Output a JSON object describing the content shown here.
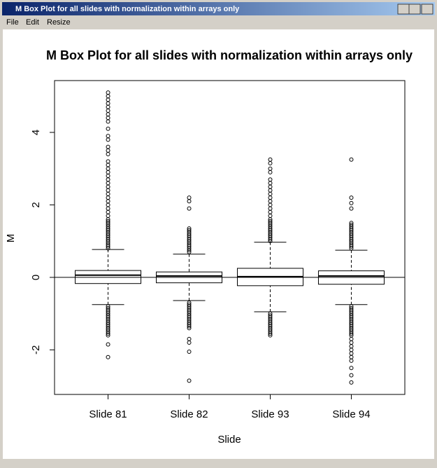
{
  "window": {
    "title": "M Box Plot for all slides with normalization within arrays only",
    "menu": [
      "File",
      "Edit",
      "Resize"
    ]
  },
  "chart_data": {
    "type": "box",
    "title": "M Box Plot for all slides with normalization within arrays only",
    "x_label": "Slide",
    "y_label": "M",
    "categories": [
      "Slide 81",
      "Slide 82",
      "Slide 93",
      "Slide 94"
    ],
    "boxes": [
      {
        "whislo": -0.75,
        "q1": -0.17,
        "med": 0.06,
        "q3": 0.19,
        "whishi": 0.77,
        "outliers": [
          0.8,
          0.85,
          0.9,
          0.95,
          1.0,
          1.05,
          1.1,
          1.15,
          1.2,
          1.25,
          1.3,
          1.35,
          1.4,
          1.45,
          1.5,
          1.55,
          1.6,
          1.7,
          1.8,
          1.9,
          2.0,
          2.1,
          2.2,
          2.3,
          2.4,
          2.5,
          2.6,
          2.7,
          2.8,
          2.9,
          3.0,
          3.1,
          3.2,
          3.4,
          3.5,
          3.6,
          3.8,
          3.9,
          4.1,
          4.3,
          4.4,
          4.5,
          4.6,
          4.7,
          4.8,
          4.9,
          5.0,
          5.1,
          -0.8,
          -0.85,
          -0.9,
          -0.95,
          -1.0,
          -1.05,
          -1.1,
          -1.15,
          -1.2,
          -1.25,
          -1.3,
          -1.35,
          -1.4,
          -1.45,
          -1.5,
          -1.55,
          -1.6,
          -1.85,
          -2.2
        ]
      },
      {
        "whislo": -0.64,
        "q1": -0.15,
        "med": 0.04,
        "q3": 0.15,
        "whishi": 0.64,
        "outliers": [
          0.7,
          0.75,
          0.8,
          0.85,
          0.9,
          0.95,
          1.0,
          1.05,
          1.1,
          1.15,
          1.2,
          1.25,
          1.3,
          1.35,
          1.9,
          2.1,
          2.2,
          -0.7,
          -0.75,
          -0.8,
          -0.85,
          -0.9,
          -0.95,
          -1.0,
          -1.05,
          -1.1,
          -1.15,
          -1.2,
          -1.25,
          -1.3,
          -1.35,
          -1.4,
          -1.7,
          -1.8,
          -2.05,
          -2.85
        ]
      },
      {
        "whislo": -0.95,
        "q1": -0.23,
        "med": 0.02,
        "q3": 0.25,
        "whishi": 0.97,
        "outliers": [
          1.0,
          1.05,
          1.1,
          1.15,
          1.2,
          1.25,
          1.3,
          1.35,
          1.4,
          1.45,
          1.5,
          1.55,
          1.6,
          1.7,
          1.8,
          1.9,
          2.0,
          2.1,
          2.2,
          2.3,
          2.4,
          2.5,
          2.6,
          2.7,
          2.9,
          3.0,
          3.15,
          3.25,
          -1.0,
          -1.05,
          -1.1,
          -1.15,
          -1.2,
          -1.25,
          -1.3,
          -1.35,
          -1.4,
          -1.45,
          -1.5,
          -1.55,
          -1.6
        ]
      },
      {
        "whislo": -0.75,
        "q1": -0.19,
        "med": 0.04,
        "q3": 0.18,
        "whishi": 0.75,
        "outliers": [
          0.8,
          0.85,
          0.9,
          0.95,
          1.0,
          1.05,
          1.1,
          1.15,
          1.2,
          1.25,
          1.3,
          1.35,
          1.4,
          1.45,
          1.5,
          1.9,
          2.05,
          2.2,
          3.25,
          -0.8,
          -0.85,
          -0.9,
          -0.95,
          -1.0,
          -1.05,
          -1.1,
          -1.15,
          -1.2,
          -1.25,
          -1.3,
          -1.35,
          -1.4,
          -1.45,
          -1.5,
          -1.55,
          -1.6,
          -1.7,
          -1.8,
          -1.9,
          -2.0,
          -2.1,
          -2.2,
          -2.3,
          -2.5,
          -2.7,
          -2.9
        ]
      }
    ],
    "hline": 0,
    "ylim": [
      -3.23,
      5.43
    ],
    "yticks": [
      -2,
      0,
      2,
      4
    ]
  }
}
